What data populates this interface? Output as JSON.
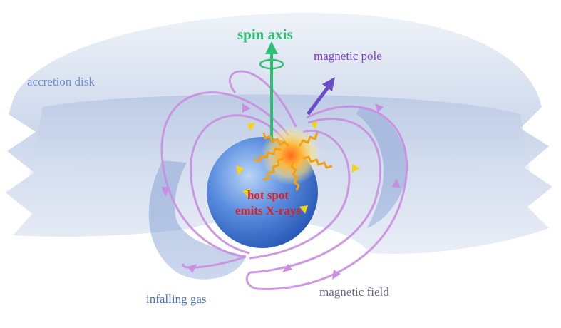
{
  "labels": {
    "spin_axis": "spin axis",
    "magnetic_pole": "magnetic pole",
    "accretion_disk": "accretion disk",
    "hot_spot_line1": "hot spot",
    "hot_spot_line2": "emits X-rays",
    "infalling_gas": "infalling gas",
    "magnetic_field": "magnetic field"
  },
  "colors": {
    "spin_axis": "#2fbf72",
    "magnetic_pole": "#7a3fd1",
    "accretion_disk": "#6f8fd0",
    "hot_spot_text": "#e01e1e",
    "infalling_gas": "#4a72c8",
    "magnetic_field_text": "#6b6b86",
    "field_lines": "#c98ee0",
    "star": "#2f66c9",
    "hot_spot": "#f5a623",
    "xray_wave": "#f5a00f"
  }
}
